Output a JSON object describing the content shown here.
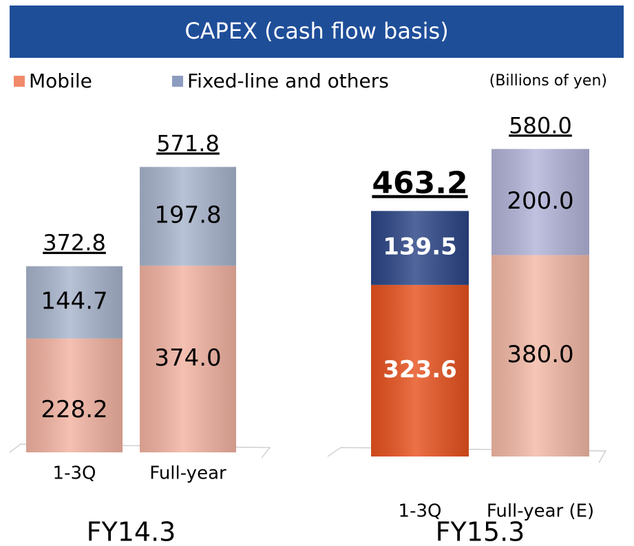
{
  "header": {
    "title": "CAPEX (cash flow basis)",
    "unit": "(Billions of yen)"
  },
  "chart_data": [
    {
      "type": "bar",
      "stacked": true,
      "group_label": "FY14.3",
      "categories": [
        "1-3Q",
        "Full-year"
      ],
      "ylim": [
        0,
        600
      ],
      "highlight": [
        false,
        false
      ],
      "series": [
        {
          "name": "Mobile",
          "color": "#f08a6a",
          "colors": [
            "#f3b3a2",
            "#f3b3a2"
          ],
          "values": [
            228.2,
            374.0
          ],
          "value_labels": [
            "228.2",
            "374.0"
          ]
        },
        {
          "name": "Fixed-line and others",
          "color": "#8c9cc0",
          "colors": [
            "#a9b5cd",
            "#a9b5cd"
          ],
          "values": [
            144.7,
            197.8
          ]
        }
      ],
      "totals": [
        372.8,
        571.8
      ]
    },
    {
      "type": "bar",
      "stacked": true,
      "group_label": "FY15.3",
      "categories": [
        "1-3Q",
        "Full-year (E)"
      ],
      "ylim": [
        0,
        600
      ],
      "highlight": [
        true,
        false
      ],
      "series": [
        {
          "colors": [
            "#e8521e",
            "#f4b9a6"
          ],
          "values": [
            323.6,
            380.0
          ],
          "value_labels": [
            "323.6",
            "380.0"
          ]
        },
        {
          "colors": [
            "#2b4586",
            "#b3b3d9"
          ],
          "values": [
            139.5,
            200.0
          ],
          "value_labels": [
            "139.5",
            "200.0"
          ]
        }
      ],
      "totals": [
        463.2,
        580.0
      ],
      "total_labels": [
        "463.2",
        "580.0"
      ]
    }
  ]
}
